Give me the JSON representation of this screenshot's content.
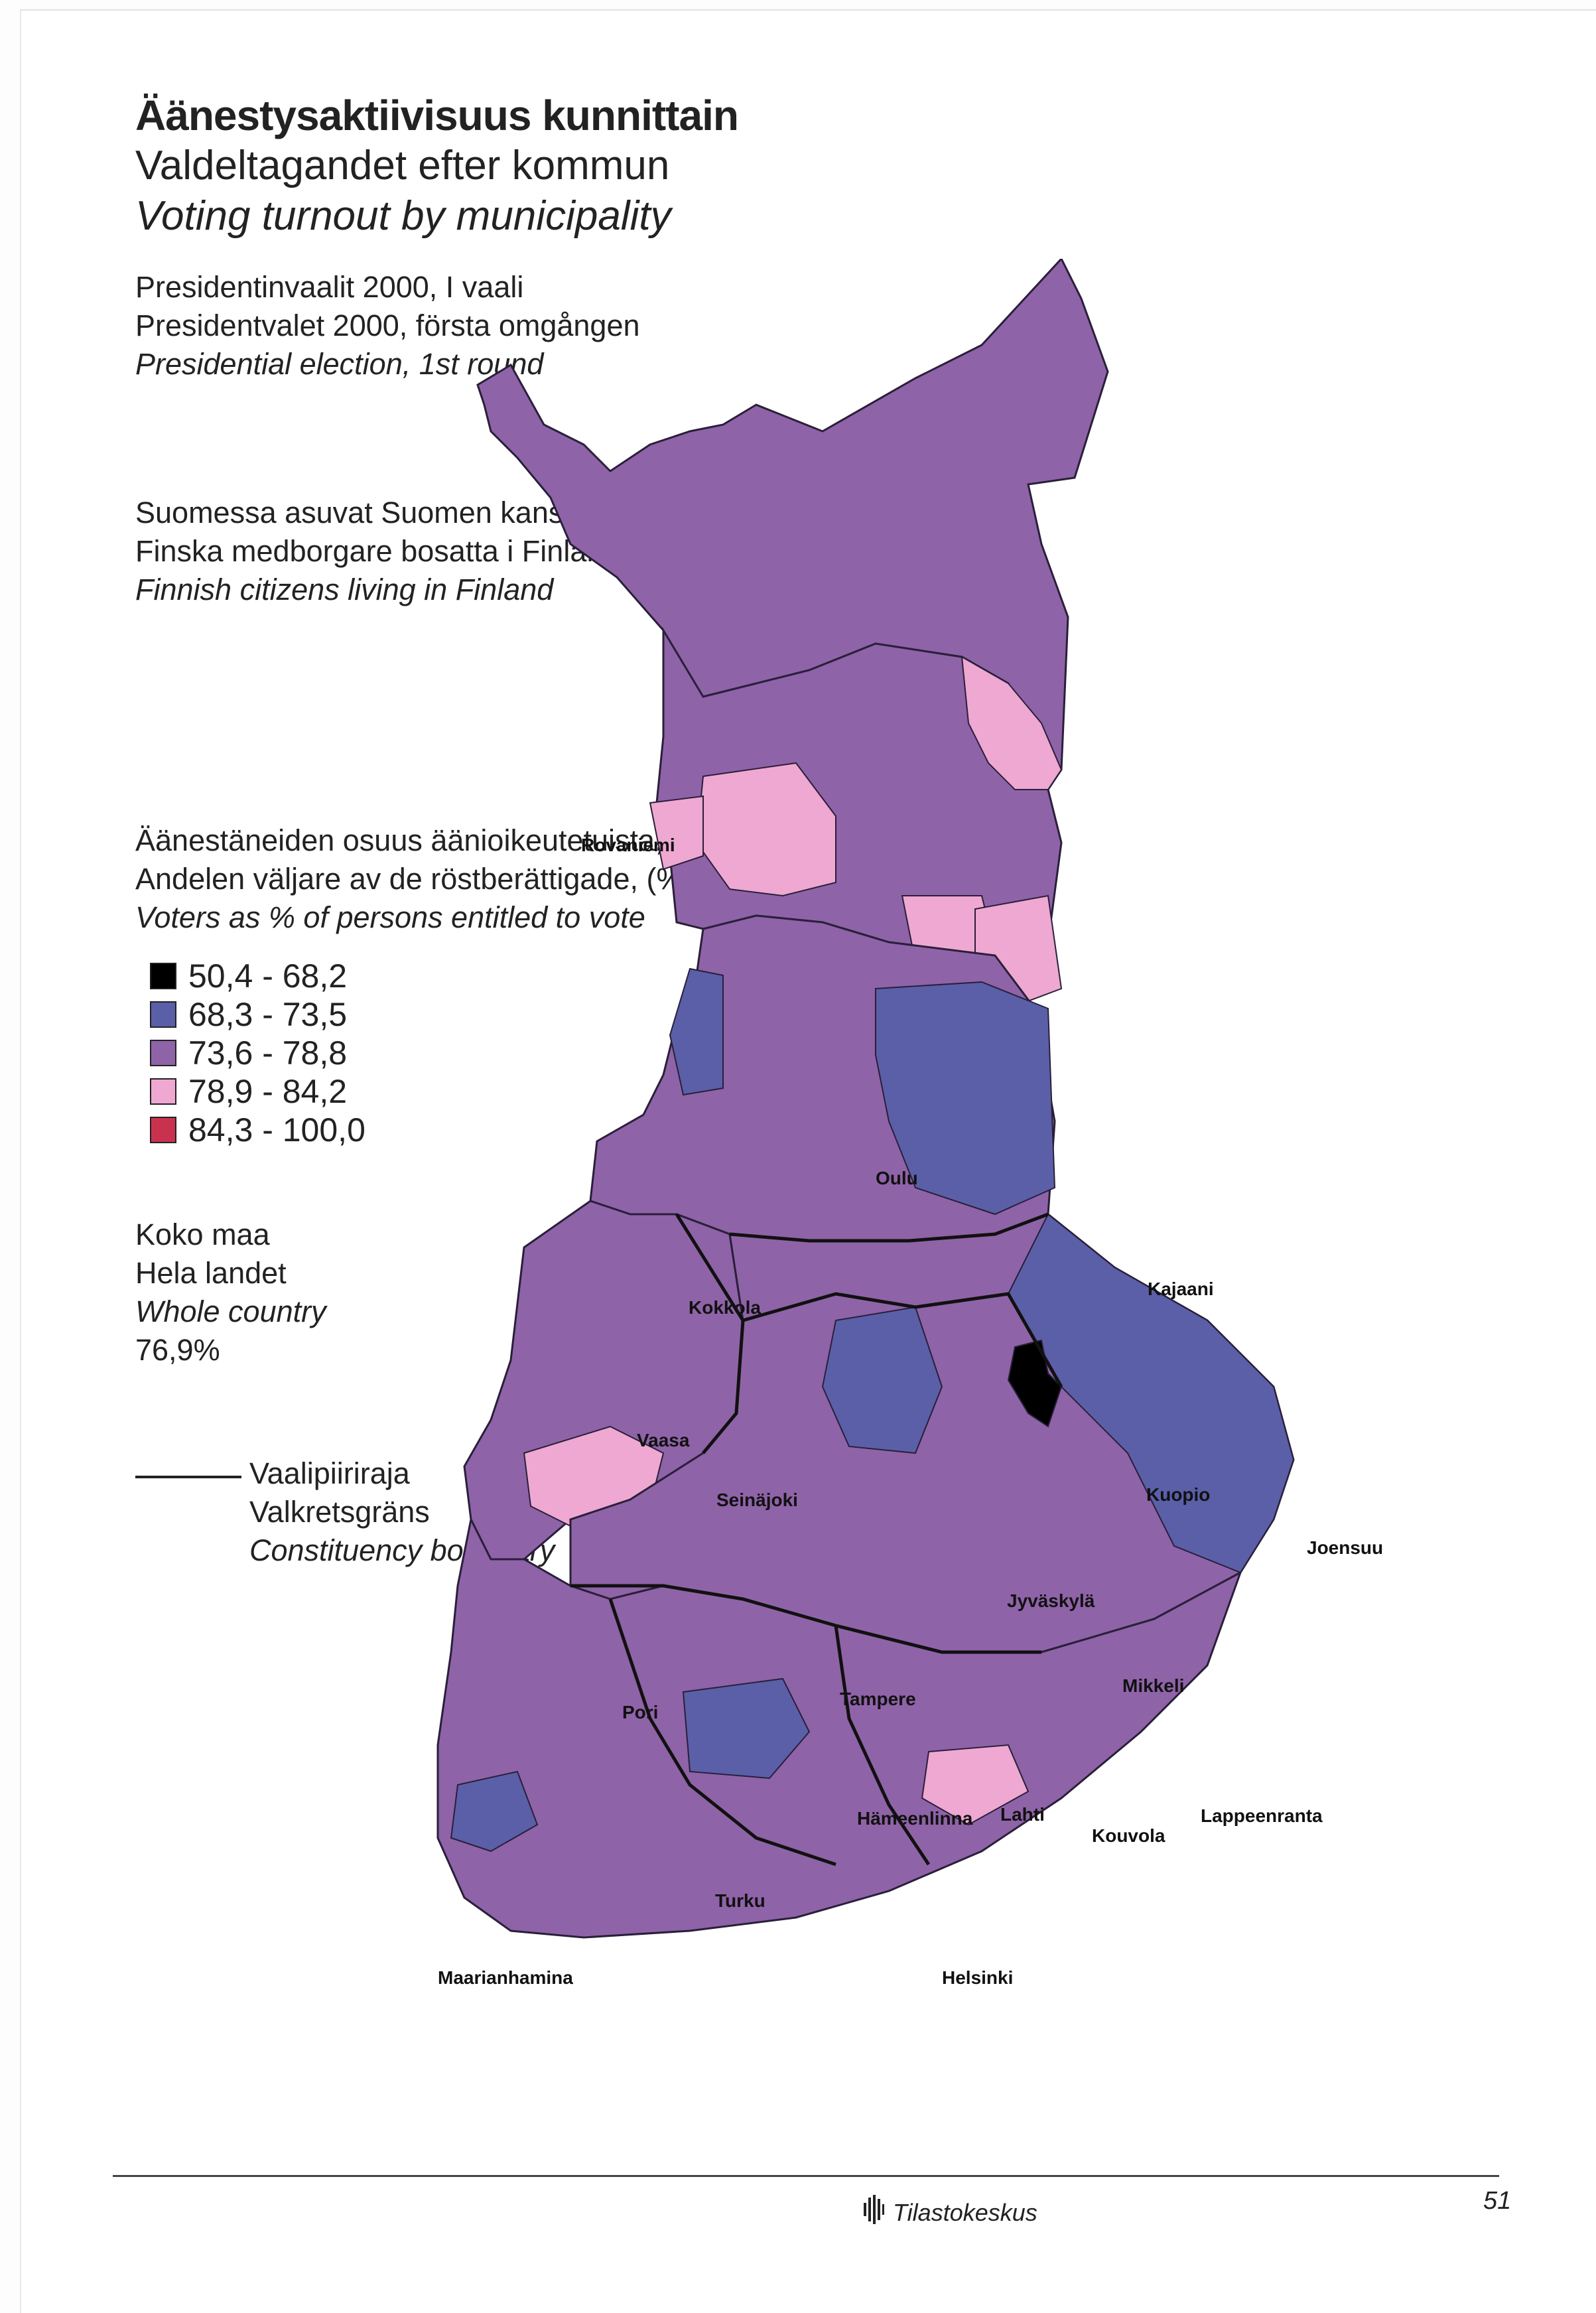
{
  "title": {
    "fi": "Äänestysaktiivisuus kunnittain",
    "sv": "Valdeltagandet efter kommun",
    "en": "Voting turnout by municipality"
  },
  "election": {
    "fi": "Presidentinvaalit 2000, I vaali",
    "sv": "Presidentvalet 2000, första omgången",
    "en": "Presidential election, 1st round"
  },
  "population": {
    "fi": "Suomessa asuvat Suomen kansalaiset",
    "sv": "Finska medborgare bosatta i Finland",
    "en": "Finnish citizens living in Finland"
  },
  "measure": {
    "fi": "Äänestäneiden osuus äänioikeutetuista, (%)",
    "sv": "Andelen väljare av de röstberättigade, (%)",
    "en": "Voters as % of persons entitled to vote"
  },
  "legend": [
    {
      "label": "50,4 -  68,2",
      "color": "#000000"
    },
    {
      "label": "68,3 -  73,5",
      "color": "#5a5fa8"
    },
    {
      "label": "73,6 -  78,8",
      "color": "#8f63a8"
    },
    {
      "label": "78,9 -  84,2",
      "color": "#eea8d2"
    },
    {
      "label": "84,3 - 100,0",
      "color": "#c8324f"
    }
  ],
  "whole_country": {
    "fi": "Koko maa",
    "sv": "Hela landet",
    "en": "Whole country",
    "value": "76,9%"
  },
  "boundary": {
    "fi": "Vaalipiiriraja",
    "sv": "Valkretsgräns",
    "en": "Constituency boundary"
  },
  "cities": {
    "rovaniemi": "Rovaniemi",
    "oulu": "Oulu",
    "kajaani": "Kajaani",
    "kokkola": "Kokkola",
    "vaasa": "Vaasa",
    "seinajoki": "Seinäjoki",
    "kuopio": "Kuopio",
    "joensuu": "Joensuu",
    "jyvaskyla": "Jyväskylä",
    "mikkeli": "Mikkeli",
    "pori": "Pori",
    "tampere": "Tampere",
    "hameenlinna": "Hämeenlinna",
    "lahti": "Lahti",
    "kouvola": "Kouvola",
    "lappeenranta": "Lappeenranta",
    "turku": "Turku",
    "maarianhamina": "Maarianhamina",
    "helsinki": "Helsinki"
  },
  "footer": {
    "publisher": "Tilastokeskus",
    "page": "51"
  }
}
